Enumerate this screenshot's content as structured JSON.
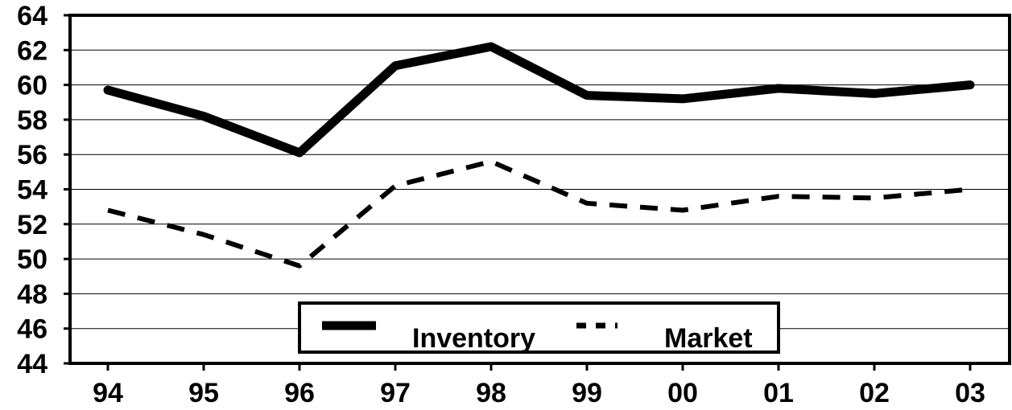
{
  "chart_data": {
    "type": "line",
    "categories": [
      "94",
      "95",
      "96",
      "97",
      "98",
      "99",
      "00",
      "01",
      "02",
      "03"
    ],
    "series": [
      {
        "name": "Inventory",
        "style": "solid",
        "color": "#000000",
        "values": [
          59.7,
          58.2,
          56.1,
          61.1,
          62.2,
          59.4,
          59.2,
          59.8,
          59.5,
          60.0
        ]
      },
      {
        "name": "Market",
        "style": "dashed",
        "color": "#000000",
        "values": [
          52.8,
          51.4,
          49.6,
          54.2,
          55.6,
          53.2,
          52.8,
          53.6,
          53.5,
          54.0
        ]
      }
    ],
    "yticks": [
      "44",
      "46",
      "48",
      "50",
      "52",
      "54",
      "56",
      "58",
      "60",
      "62",
      "64"
    ],
    "ylim": [
      44,
      64
    ],
    "grid": true,
    "legend_position": "bottom-center",
    "title": "",
    "xlabel": "",
    "ylabel": ""
  }
}
